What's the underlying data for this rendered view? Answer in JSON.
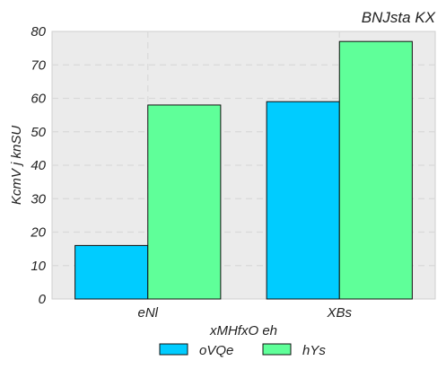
{
  "chart_data": {
    "type": "bar",
    "title": "BNJsta  KX",
    "xlabel": "xMHfxO eh",
    "ylabel": "KcmV j knSU",
    "categories": [
      "eNl",
      "XBs"
    ],
    "series": [
      {
        "name": "oVQe",
        "values": [
          16,
          59
        ],
        "color": "#00ccff"
      },
      {
        "name": "hYs",
        "values": [
          58,
          77
        ],
        "color": "#5fff99"
      }
    ],
    "ylim": [
      0,
      80
    ],
    "yticks": [
      0,
      10,
      20,
      30,
      40,
      50,
      60,
      70,
      80
    ],
    "grid": true,
    "legend_position": "bottom-center",
    "plot_background": "#ebebeb",
    "grid_color": "#d9d9d9"
  }
}
